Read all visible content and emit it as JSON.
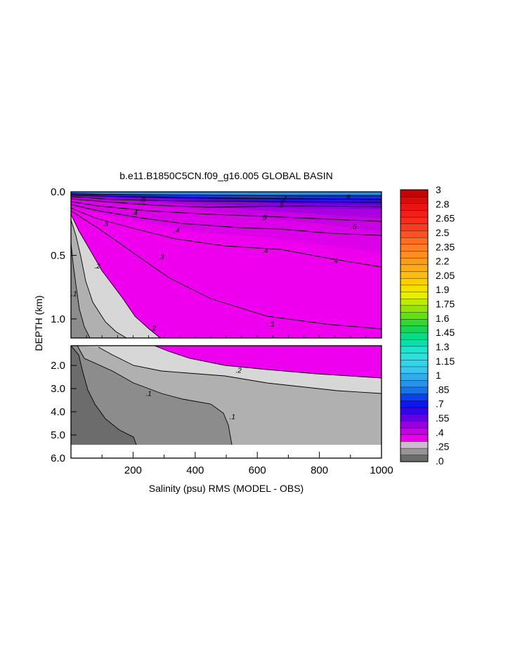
{
  "chart_data": {
    "type": "heatmap",
    "title": "b.e11.B1850C5CN.f09_g16.005 GLOBAL BASIN",
    "xlabel": "Salinity (psu) RMS (MODEL - OBS)",
    "ylabel": "DEPTH (km)",
    "xlim": [
      0,
      1000
    ],
    "x_ticks": [
      "200",
      "400",
      "600",
      "800",
      "1000"
    ],
    "upper_panel": {
      "ylim": [
        0,
        1.15
      ],
      "y_ticks": [
        "0.0",
        "0.5",
        "1.0"
      ]
    },
    "lower_panel": {
      "ylim": [
        1.15,
        6.0
      ],
      "y_ticks": [
        "2.0",
        "3.0",
        "4.0",
        "5.0",
        "6.0"
      ]
    },
    "contour_labels": [
      {
        "text": ".8",
        "panel": "upper",
        "x": 230,
        "y": 0.06
      },
      {
        "text": ".7",
        "panel": "upper",
        "x": 685,
        "y": 0.05
      },
      {
        "text": ".6",
        "panel": "upper",
        "x": 675,
        "y": 0.1
      },
      {
        "text": ".8",
        "panel": "upper",
        "x": 890,
        "y": 0.04
      },
      {
        "text": ".4",
        "panel": "upper",
        "x": 205,
        "y": 0.16
      },
      {
        "text": ".4",
        "panel": "upper",
        "x": 340,
        "y": 0.3
      },
      {
        "text": ".3",
        "panel": "upper",
        "x": 110,
        "y": 0.25
      },
      {
        "text": ".5",
        "panel": "upper",
        "x": 620,
        "y": 0.2
      },
      {
        "text": ".5",
        "panel": "upper",
        "x": 910,
        "y": 0.27
      },
      {
        "text": ".4",
        "panel": "upper",
        "x": 625,
        "y": 0.46
      },
      {
        "text": ".4",
        "panel": "upper",
        "x": 850,
        "y": 0.54
      },
      {
        "text": ".3",
        "panel": "upper",
        "x": 290,
        "y": 0.51
      },
      {
        "text": ".3",
        "panel": "upper",
        "x": 645,
        "y": 1.04
      },
      {
        "text": ".2",
        "panel": "upper",
        "x": 85,
        "y": 0.58
      },
      {
        "text": ".2",
        "panel": "upper",
        "x": 265,
        "y": 1.07
      },
      {
        "text": ".1",
        "panel": "upper",
        "x": 10,
        "y": 0.8
      },
      {
        "text": ".2",
        "panel": "lower",
        "x": 540,
        "y": 2.2
      },
      {
        "text": ".1",
        "panel": "lower",
        "x": 250,
        "y": 3.2
      },
      {
        "text": ".1",
        "panel": "lower",
        "x": 520,
        "y": 4.2
      }
    ],
    "colorbar": {
      "min": 0,
      "max": 3,
      "tick_labels": [
        "3",
        "2.8",
        "2.65",
        "2.5",
        "2.35",
        "2.2",
        "2.05",
        "1.9",
        "1.75",
        "1.6",
        "1.45",
        "1.3",
        "1.15",
        "1",
        ".85",
        ".7",
        ".55",
        ".4",
        ".25",
        ".0"
      ]
    }
  }
}
